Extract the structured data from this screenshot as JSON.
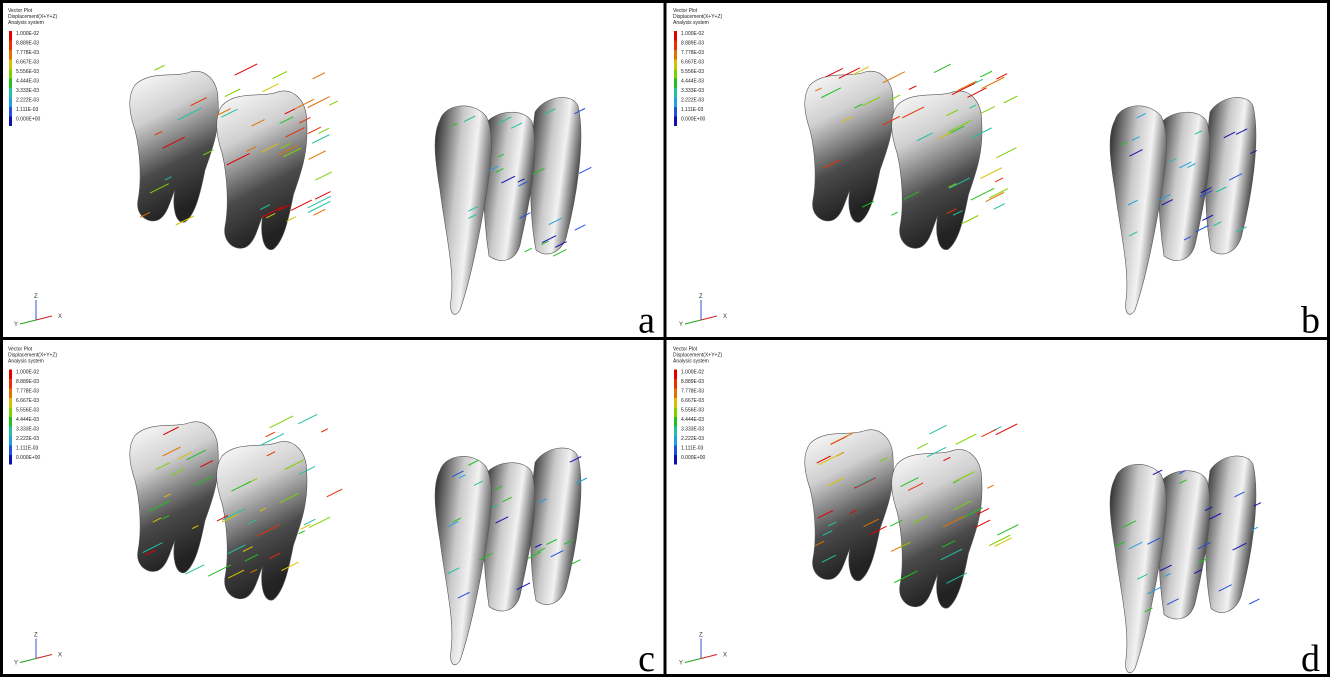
{
  "panels": [
    {
      "label": "a",
      "legend": {
        "title": [
          "Vector Plot",
          "Displacement(X+Y+Z)",
          "Analysis system"
        ],
        "values": [
          "1.000E-02",
          "8.889E-03",
          "7.778E-03",
          "6.667E-03",
          "5.556E-03",
          "4.444E-03",
          "3.333E-03",
          "2.222E-03",
          "1.111E-03",
          "0.000E+00"
        ]
      },
      "axes": [
        "Z",
        "Y",
        "X"
      ]
    },
    {
      "label": "b",
      "legend": {
        "title": [
          "Vector Plot",
          "Displacement(X+Y+Z)",
          "Analysis system"
        ],
        "values": [
          "1.000E-02",
          "8.889E-03",
          "7.778E-03",
          "6.667E-03",
          "5.556E-03",
          "4.444E-03",
          "3.333E-03",
          "2.222E-03",
          "1.111E-03",
          "0.000E+00"
        ]
      },
      "axes": [
        "Z",
        "Y",
        "X"
      ]
    },
    {
      "label": "c",
      "legend": {
        "title": [
          "Vector Plot",
          "Displacement(X+Y+Z)",
          "Analysis system"
        ],
        "values": [
          "1.000E-02",
          "8.889E-03",
          "7.778E-03",
          "6.667E-03",
          "5.556E-03",
          "4.444E-03",
          "3.333E-03",
          "2.222E-03",
          "1.111E-03",
          "0.000E+00"
        ]
      },
      "axes": [
        "Z",
        "Y",
        "X"
      ]
    },
    {
      "label": "d",
      "legend": {
        "title": [
          "Vector Plot",
          "Displacement(X+Y+Z)",
          "Analysis system"
        ],
        "values": [
          "1.000E-02",
          "8.889E-03",
          "7.778E-03",
          "6.667E-03",
          "5.556E-03",
          "4.444E-03",
          "3.333E-03",
          "2.222E-03",
          "1.111E-03",
          "0.000E+00"
        ]
      },
      "axes": [
        "Z",
        "Y",
        "X"
      ]
    }
  ]
}
